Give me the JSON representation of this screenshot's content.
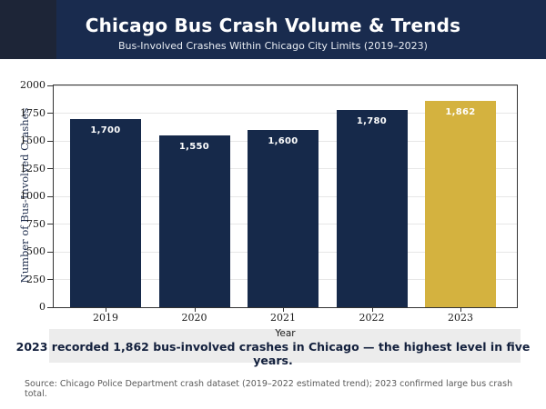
{
  "header": {
    "title": "Chicago Bus Crash Volume & Trends",
    "subtitle": "Bus-Involved Crashes Within Chicago City Limits (2019–2023)"
  },
  "chart_data": {
    "type": "bar",
    "title": "Chicago Bus Crash Volume & Trends",
    "categories": [
      "2019",
      "2020",
      "2021",
      "2022",
      "2023"
    ],
    "values": [
      1700,
      1550,
      1600,
      1780,
      1862
    ],
    "value_labels": [
      "1,700",
      "1,550",
      "1,600",
      "1,780",
      "1,862"
    ],
    "xlabel": "Year",
    "ylabel": "Number of Bus-Involved Crashes",
    "ylim": [
      0,
      2000
    ],
    "yticks": [
      0,
      250,
      500,
      750,
      1000,
      1250,
      1500,
      1750,
      2000
    ],
    "grid": true,
    "legend_position": "none",
    "bar_color_default": "#16294a",
    "bar_color_highlight": "#d4b23f",
    "highlight_index": 4
  },
  "annotation": {
    "text": "2023 recorded 1,862 bus-involved crashes in Chicago — the highest level in five years.",
    "background": "#ececec"
  },
  "source": {
    "text": "Source: Chicago Police Department crash dataset (2019–2022 estimated trend); 2023 confirmed large bus crash total."
  },
  "colors": {
    "header_bg": "#192b4e",
    "header_corner_bg": "#1d2537",
    "title_text": "#ffffff",
    "subtitle_text": "#e8ecf2",
    "axis_text": "#1a1a1a",
    "ylabel_text": "#1b2a4a",
    "gridline": "#e7e7e7",
    "annotation_text": "#13203d",
    "source_text": "#5a5a5a"
  }
}
